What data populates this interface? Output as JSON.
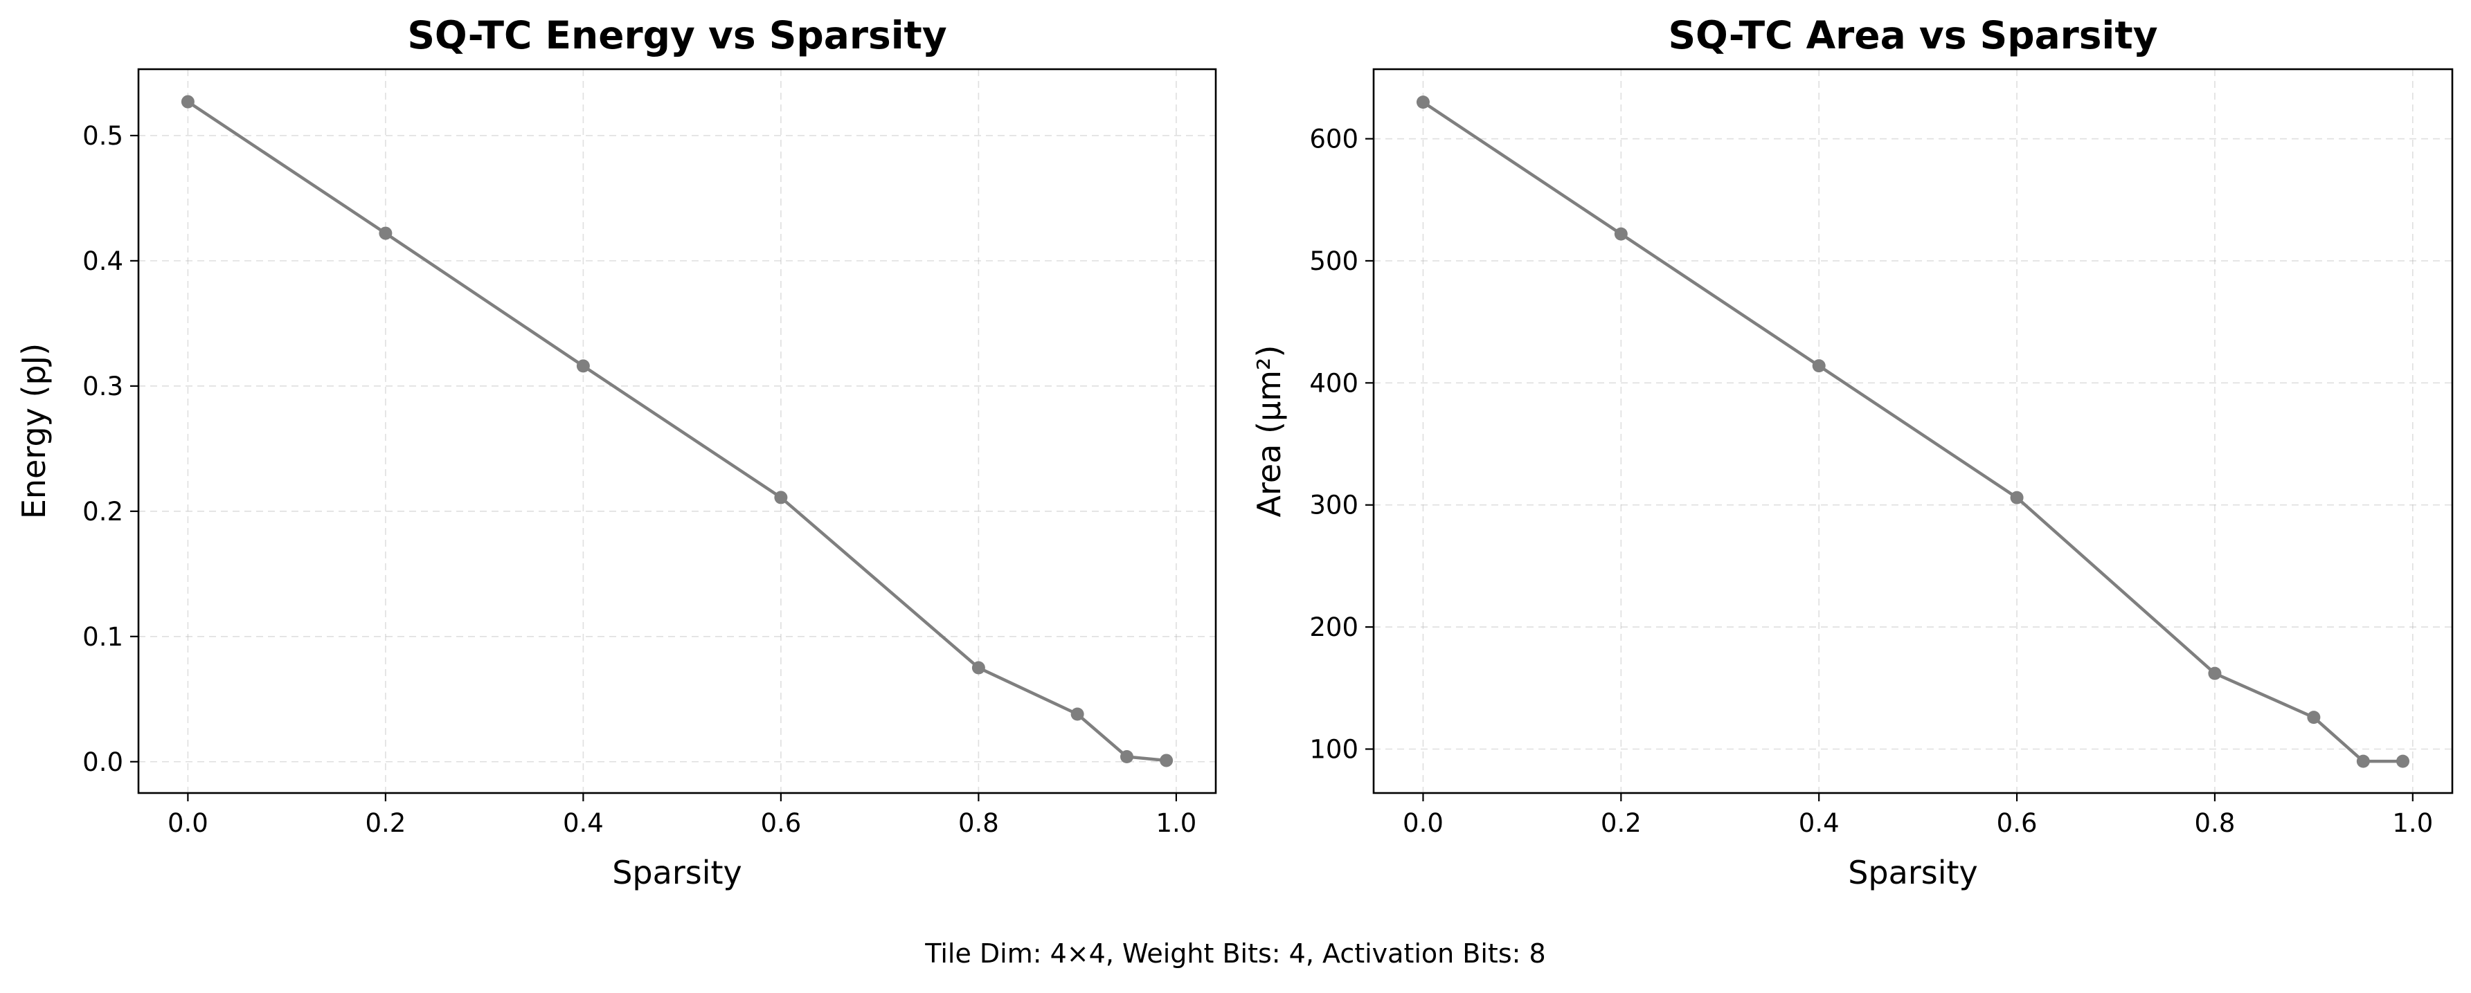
{
  "chart_data": [
    {
      "type": "line",
      "title": "SQ-TC Energy vs Sparsity",
      "xlabel": "Sparsity",
      "ylabel": "Energy (pJ)",
      "xlim": [
        -0.05,
        1.04
      ],
      "ylim": [
        -0.025,
        0.553
      ],
      "xticks": [
        0.0,
        0.2,
        0.4,
        0.6,
        0.8,
        1.0
      ],
      "xtick_labels": [
        "0.0",
        "0.2",
        "0.4",
        "0.6",
        "0.8",
        "1.0"
      ],
      "yticks": [
        0.0,
        0.1,
        0.2,
        0.3,
        0.4,
        0.5
      ],
      "ytick_labels": [
        "0.0",
        "0.1",
        "0.2",
        "0.3",
        "0.4",
        "0.5"
      ],
      "grid": true,
      "color": "#7f7f7f",
      "x": [
        0.0,
        0.2,
        0.4,
        0.6,
        0.8,
        0.9,
        0.95,
        0.99
      ],
      "y": [
        0.527,
        0.422,
        0.316,
        0.211,
        0.075,
        0.038,
        0.004,
        0.001
      ]
    },
    {
      "type": "line",
      "title": "SQ-TC Area vs Sparsity",
      "xlabel": "Sparsity",
      "ylabel": "Area (μm²)",
      "xlim": [
        -0.05,
        1.04
      ],
      "ylim": [
        64.0,
        657.0
      ],
      "xticks": [
        0.0,
        0.2,
        0.4,
        0.6,
        0.8,
        1.0
      ],
      "xtick_labels": [
        "0.0",
        "0.2",
        "0.4",
        "0.6",
        "0.8",
        "1.0"
      ],
      "yticks": [
        100,
        200,
        300,
        400,
        500,
        600
      ],
      "ytick_labels": [
        "100",
        "200",
        "300",
        "400",
        "500",
        "600"
      ],
      "grid": true,
      "color": "#7f7f7f",
      "x": [
        0.0,
        0.2,
        0.4,
        0.6,
        0.8,
        0.9,
        0.95,
        0.99
      ],
      "y": [
        630,
        522,
        414,
        306,
        162,
        126,
        90,
        90
      ]
    }
  ],
  "footer": "Tile Dim: 4×4, Weight Bits: 4, Activation Bits: 8"
}
